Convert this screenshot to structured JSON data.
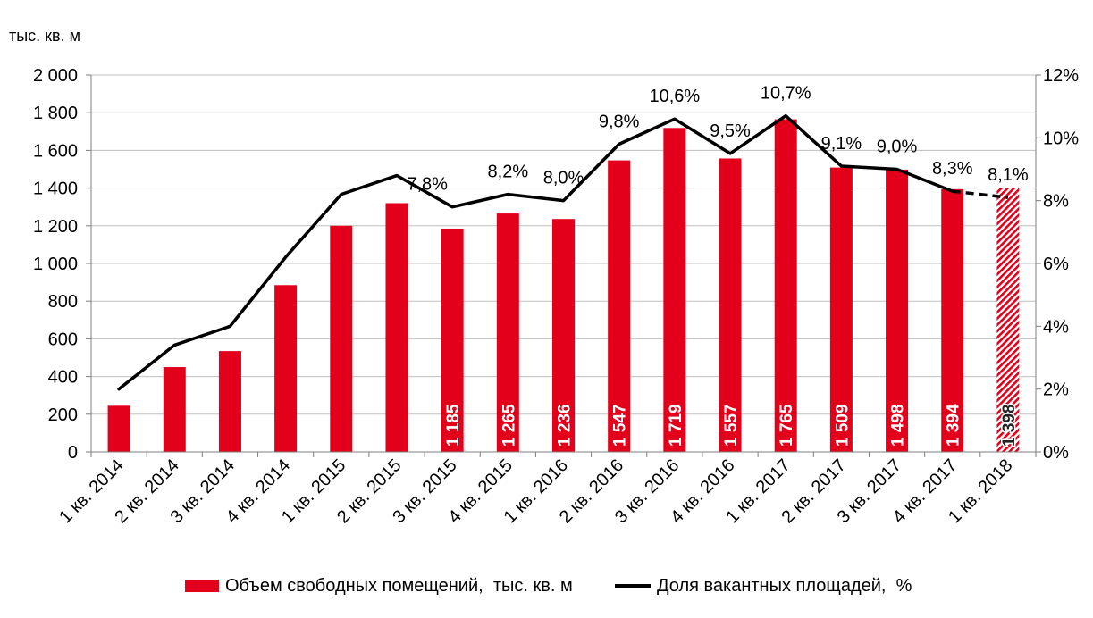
{
  "chart_data": {
    "type": "bar",
    "ylabel": "тыс. кв. м",
    "categories": [
      "1 кв. 2014",
      "2 кв. 2014",
      "3 кв. 2014",
      "4 кв. 2014",
      "1 кв. 2015",
      "2 кв. 2015",
      "3 кв. 2015",
      "4 кв. 2015",
      "1 кв. 2016",
      "2 кв. 2016",
      "3 кв. 2016",
      "4 кв. 2016",
      "1 кв. 2017",
      "2 кв. 2017",
      "3 кв. 2017",
      "4 кв. 2017",
      "1 кв. 2018"
    ],
    "ylim": [
      0,
      2000
    ],
    "y2lim": [
      0,
      12
    ],
    "yticks": [
      "0",
      "200",
      "400",
      "600",
      "800",
      "1 000",
      "1 200",
      "1 400",
      "1 600",
      "1 800",
      "2 000"
    ],
    "y2ticks": [
      "0%",
      "2%",
      "4%",
      "6%",
      "8%",
      "10%",
      "12%"
    ],
    "series": [
      {
        "name": "Объем свободных помещений,  тыс. кв. м",
        "type": "bar",
        "axis": "left",
        "values": [
          245,
          450,
          535,
          885,
          1200,
          1320,
          1185,
          1265,
          1236,
          1547,
          1719,
          1557,
          1765,
          1509,
          1498,
          1394,
          1398
        ],
        "labels": [
          null,
          null,
          null,
          null,
          null,
          null,
          "1 185",
          "1 265",
          "1 236",
          "1 547",
          "1 719",
          "1 557",
          "1 765",
          "1 509",
          "1 498",
          "1 394",
          "1 398"
        ]
      },
      {
        "name": "Доля вакантных площадей,  %",
        "type": "line",
        "axis": "right",
        "values": [
          2.0,
          3.4,
          4.0,
          6.2,
          8.2,
          8.8,
          7.8,
          8.2,
          8.0,
          9.8,
          10.6,
          9.5,
          10.7,
          9.1,
          9.0,
          8.3,
          8.1
        ],
        "labels": [
          null,
          null,
          null,
          null,
          null,
          null,
          "7,8%",
          "8,2%",
          "8,0%",
          "9,8%",
          "10,6%",
          "9,5%",
          "10,7%",
          "9,1%",
          "9,0%",
          "8,3%",
          "8,1%"
        ]
      }
    ],
    "projected": [
      false,
      false,
      false,
      false,
      false,
      false,
      false,
      false,
      false,
      false,
      false,
      false,
      false,
      false,
      false,
      false,
      true
    ],
    "grid": true,
    "legend": "bottom",
    "colors": {
      "bar": "#e2001a",
      "line": "#000000",
      "grid": "#bfbfbf",
      "axis": "#7f7f7f"
    }
  }
}
